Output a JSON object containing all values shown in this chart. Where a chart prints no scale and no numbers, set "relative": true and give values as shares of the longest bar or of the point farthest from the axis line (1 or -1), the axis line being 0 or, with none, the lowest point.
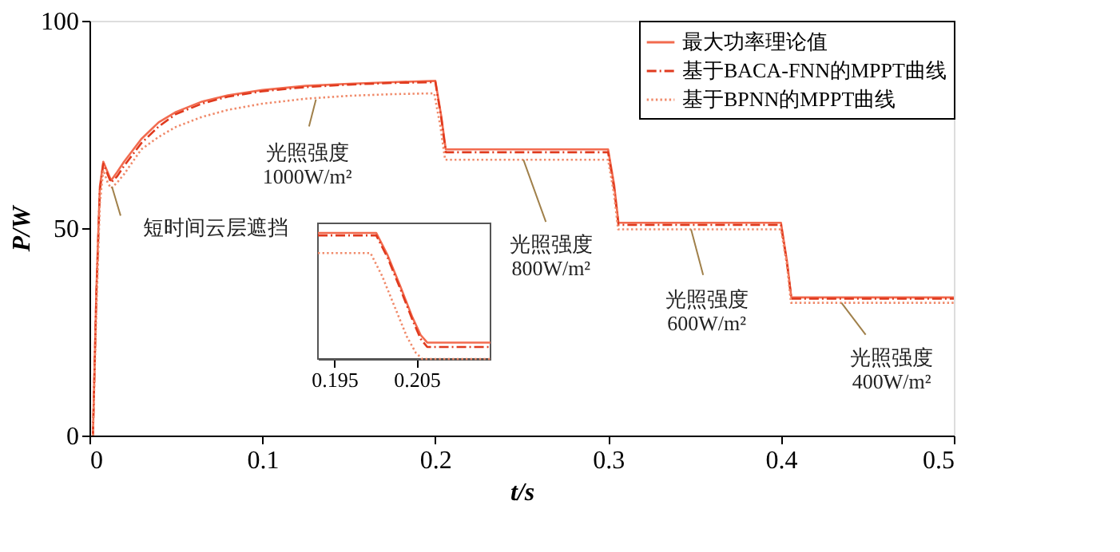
{
  "chart_data": [
    {
      "type": "line",
      "xlabel": "t/s",
      "ylabel": "P/W",
      "xlim": [
        0,
        0.5
      ],
      "ylim": [
        0,
        100
      ],
      "xticks": [
        0,
        0.1,
        0.2,
        0.3,
        0.4,
        0.5
      ],
      "yticks": [
        0,
        50,
        100
      ],
      "grid": false,
      "legend": "top right",
      "series": [
        {
          "name": "最大功率理论值",
          "color": "#f26b4f",
          "line_style": "solid",
          "x": [
            0.002,
            0.004,
            0.006,
            0.008,
            0.0105,
            0.0125,
            0.016,
            0.02,
            0.03,
            0.04,
            0.05,
            0.065,
            0.08,
            0.1,
            0.125,
            0.15,
            0.175,
            0.2001,
            0.2035,
            0.2061,
            0.25,
            0.3,
            0.3035,
            0.306,
            0.35,
            0.4,
            0.4035,
            0.406,
            0.5
          ],
          "values": [
            0,
            35,
            60,
            66,
            63.5,
            61.5,
            63.5,
            66,
            71.5,
            75.5,
            78,
            80.5,
            82,
            83.3,
            84.3,
            84.8,
            85.2,
            85.5,
            77,
            69,
            69,
            69,
            60.5,
            51.3,
            51.3,
            51.3,
            42,
            33.3,
            33.3
          ]
        },
        {
          "name": "基于BACA-FNN的MPPT曲线",
          "color": "#e03a1e",
          "line_style": "dashdot",
          "x": [
            0.002,
            0.004,
            0.006,
            0.008,
            0.0105,
            0.0125,
            0.016,
            0.02,
            0.03,
            0.04,
            0.05,
            0.065,
            0.08,
            0.1,
            0.125,
            0.15,
            0.175,
            0.2001,
            0.2035,
            0.2061,
            0.25,
            0.3,
            0.3035,
            0.306,
            0.35,
            0.4,
            0.4035,
            0.406,
            0.5
          ],
          "values": [
            0,
            34,
            59,
            65.5,
            63,
            61,
            62.5,
            65,
            70.5,
            74.5,
            77.5,
            80,
            81.7,
            83,
            84,
            84.6,
            85,
            85.2,
            76.5,
            68.3,
            68.3,
            68.3,
            59.5,
            50.8,
            50.8,
            50.8,
            41.5,
            33,
            33
          ]
        },
        {
          "name": "基于BPNN的MPPT曲线",
          "color": "#f08a6a",
          "line_style": "dotted",
          "x": [
            0.002,
            0.004,
            0.006,
            0.008,
            0.0105,
            0.0125,
            0.016,
            0.02,
            0.03,
            0.04,
            0.05,
            0.065,
            0.08,
            0.1,
            0.125,
            0.15,
            0.175,
            0.1994,
            0.203,
            0.2057,
            0.25,
            0.3,
            0.3035,
            0.3058,
            0.35,
            0.4,
            0.4035,
            0.4058,
            0.5
          ],
          "values": [
            0,
            30,
            56,
            64,
            61,
            59.6,
            61,
            63,
            69,
            72,
            74.4,
            76.8,
            78.5,
            80,
            81.2,
            81.9,
            82.3,
            82.5,
            74.5,
            66.5,
            66.5,
            66.5,
            58,
            49.7,
            49.7,
            49.7,
            41,
            32,
            32
          ]
        }
      ],
      "annotations": [
        {
          "text": "短时间云层遮挡",
          "x": 0.013,
          "y": 60
        },
        {
          "text": "光照强度\n1000W/m²",
          "x": 0.131,
          "y": 81
        },
        {
          "text": "光照强度\n800W/m²",
          "x": 0.251,
          "y": 66.5
        },
        {
          "text": "光照强度\n600W/m²",
          "x": 0.348,
          "y": 49.7
        },
        {
          "text": "光照强度\n400W/m²",
          "x": 0.435,
          "y": 32
        }
      ]
    },
    {
      "type": "line",
      "relative": true,
      "xlim": [
        0.193,
        0.214
      ],
      "xticks": [
        0.195,
        0.205
      ],
      "series": [
        {
          "color": "#f26b4f",
          "line_style": "solid",
          "x": [
            0.193,
            0.2001,
            0.2015,
            0.203,
            0.2045,
            0.2055,
            0.2063,
            0.214
          ],
          "values": [
            1,
            1,
            0.82,
            0.58,
            0.33,
            0.19,
            0.13,
            0.13
          ]
        },
        {
          "color": "#e03a1e",
          "line_style": "dashdot",
          "x": [
            0.193,
            0.2001,
            0.2015,
            0.203,
            0.2045,
            0.2055,
            0.2063,
            0.214
          ],
          "values": [
            0.98,
            0.98,
            0.8,
            0.56,
            0.31,
            0.16,
            0.095,
            0.095
          ]
        },
        {
          "color": "#f08a6a",
          "line_style": "dotted",
          "x": [
            0.193,
            0.1994,
            0.2008,
            0.2023,
            0.2038,
            0.2049,
            0.2057,
            0.214
          ],
          "values": [
            0.84,
            0.84,
            0.66,
            0.42,
            0.18,
            0.05,
            0,
            0
          ]
        }
      ]
    }
  ]
}
